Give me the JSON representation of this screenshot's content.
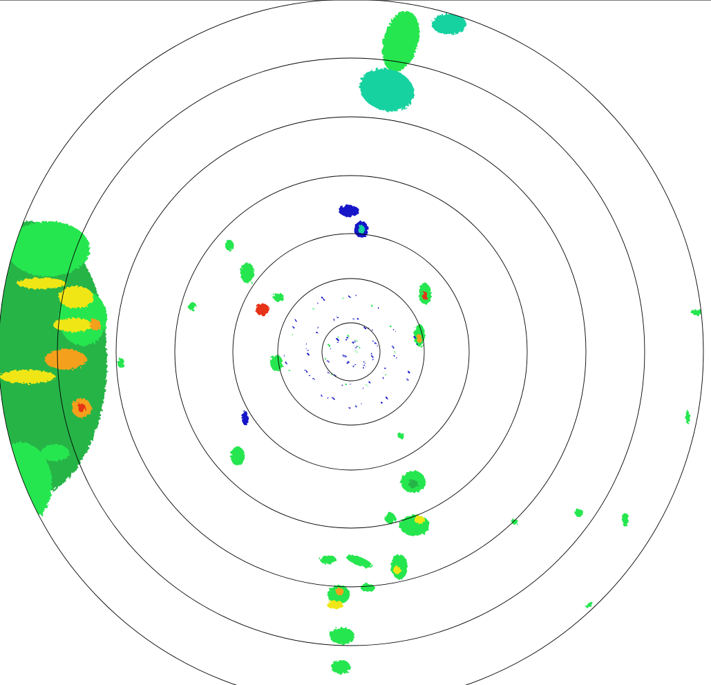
{
  "radar": {
    "display": "ppi",
    "range_ring_count": 7,
    "ring_color": "#000000",
    "background": "#ffffff",
    "palette": {
      "very_light": "#1414c8",
      "light": "#1e78dc",
      "light_moderate": "#14d2a0",
      "moderate": "#28e650",
      "moderate_dark": "#28b446",
      "heavy": "#f0e614",
      "very_heavy": "#f5a01e",
      "intense": "#e63214"
    }
  }
}
